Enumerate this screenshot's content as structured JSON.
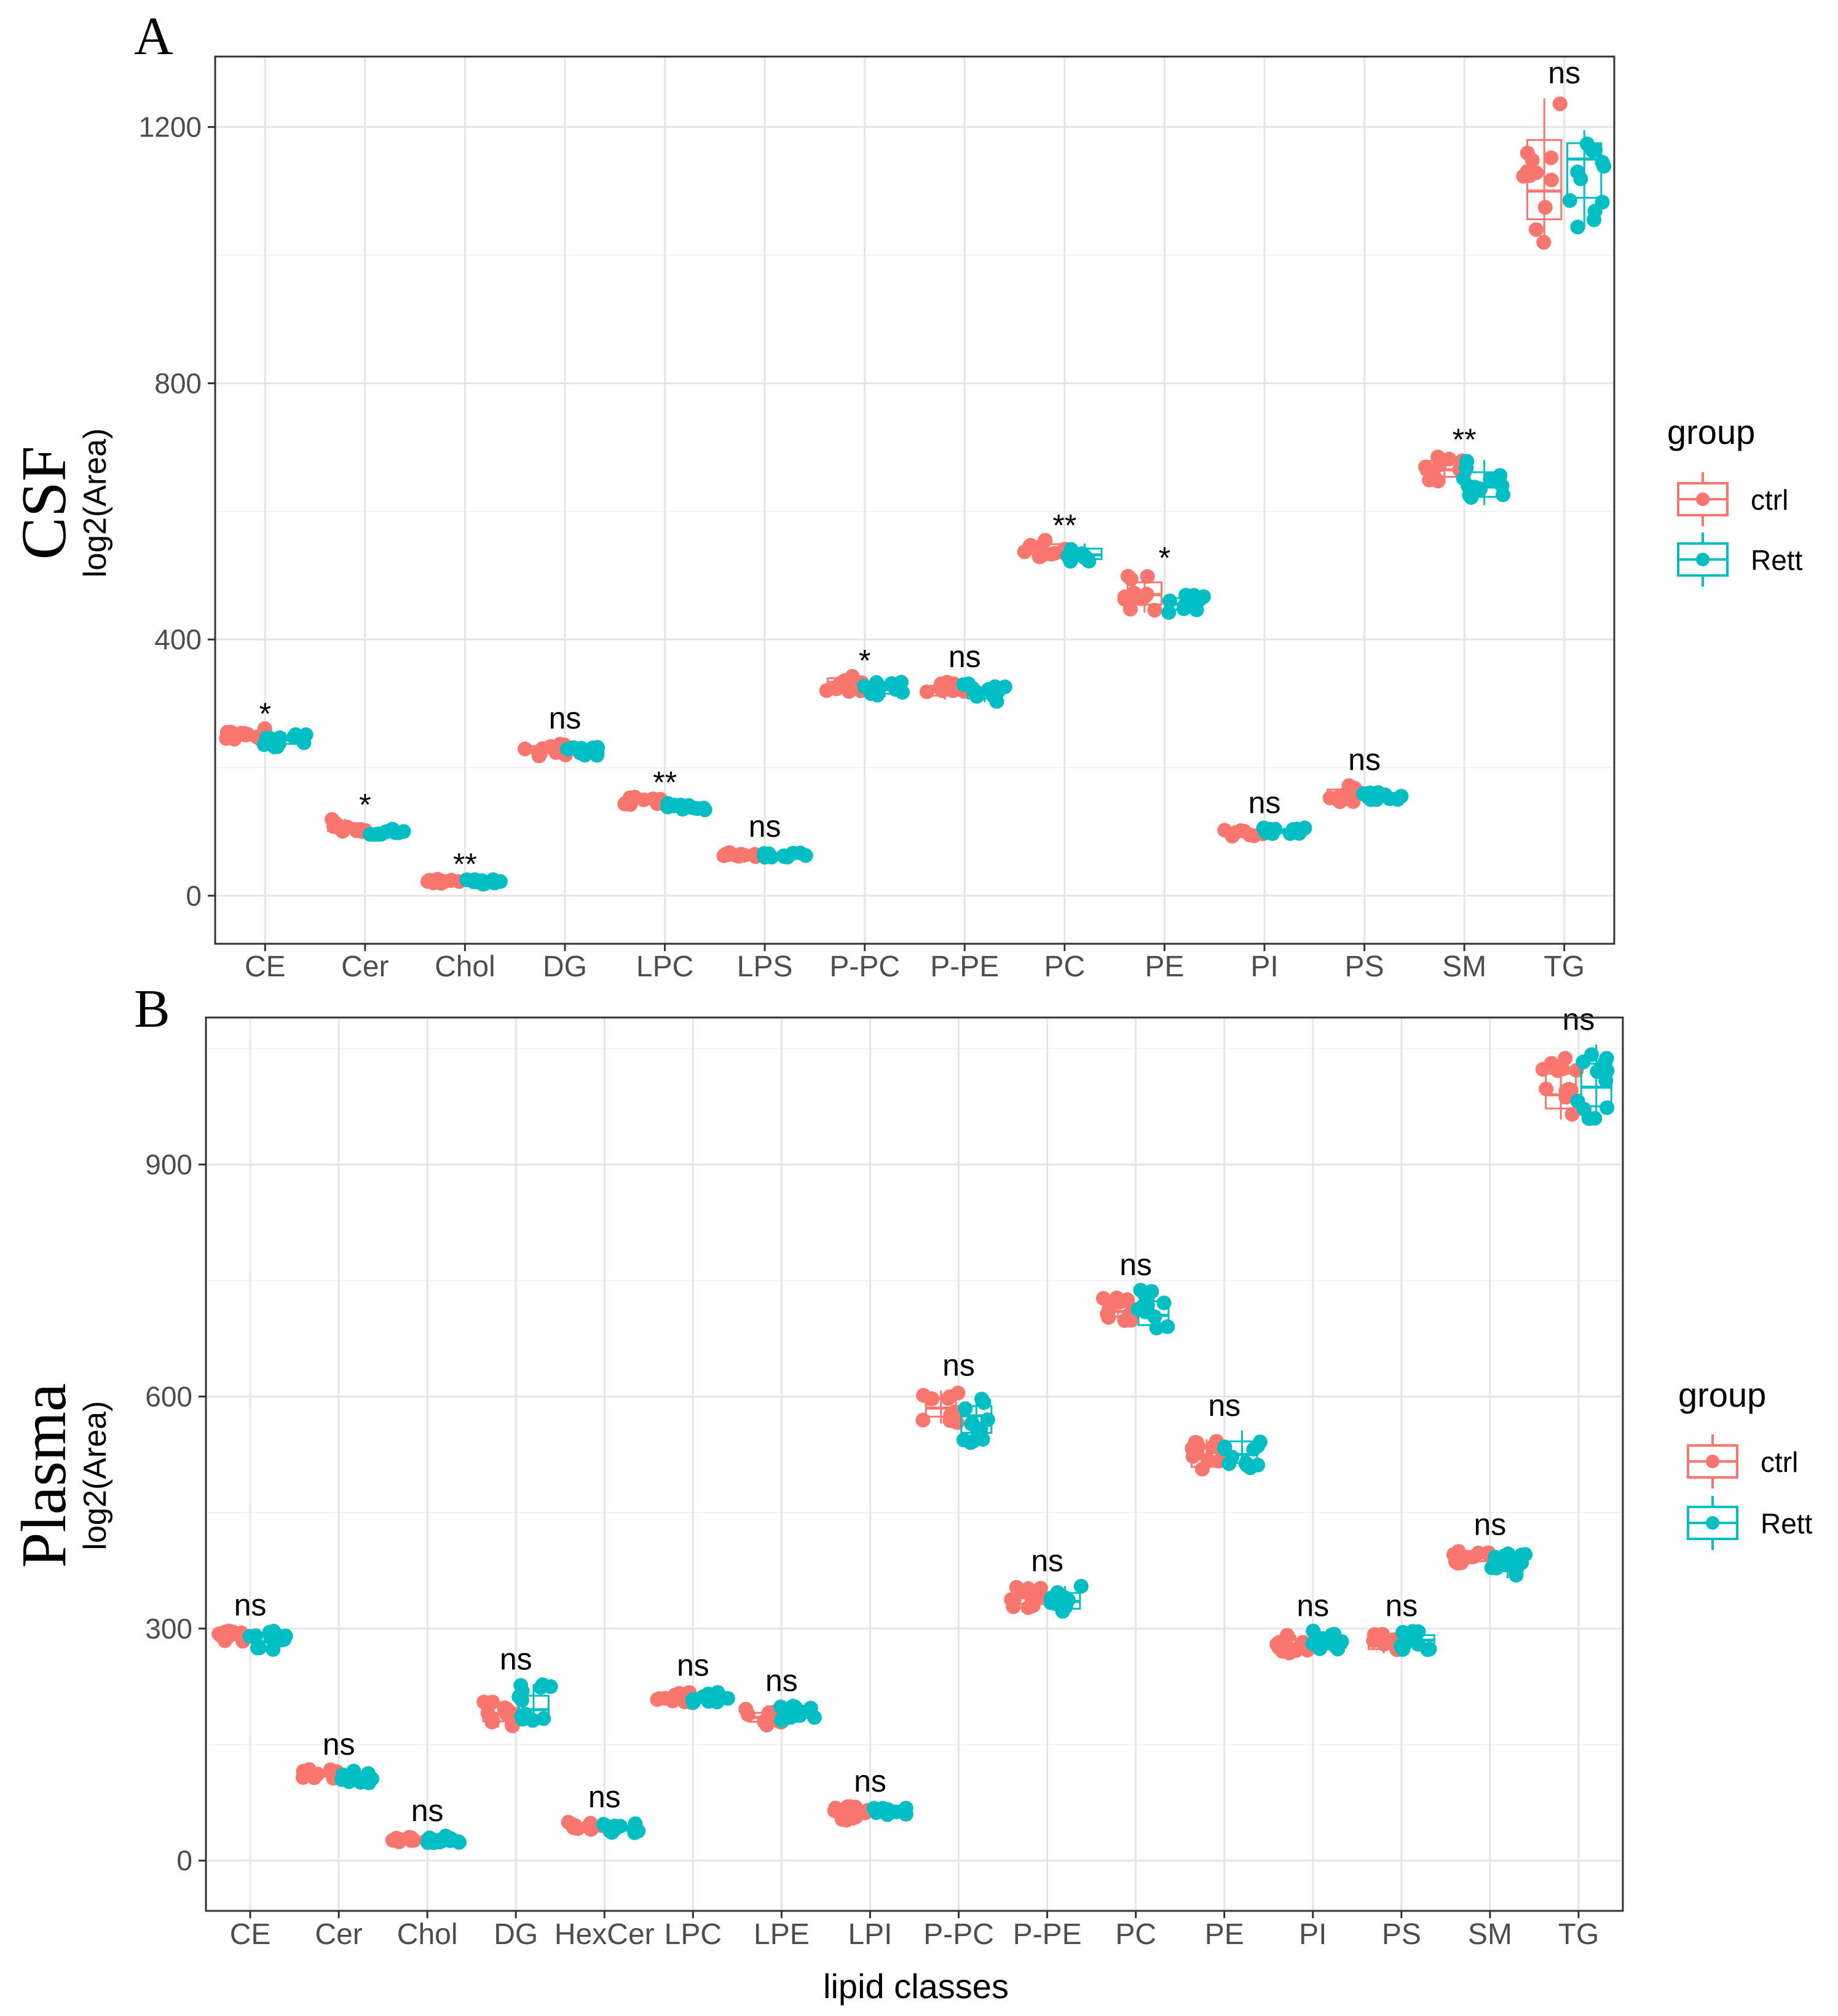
{
  "colors": {
    "ctrl": "#F8766D",
    "rett": "#00BFC4",
    "grid_major": "#E5E5E5",
    "grid_minor": "#F2F2F2",
    "panel_border": "#333333"
  },
  "legend": {
    "title": "group",
    "items": [
      "ctrl",
      "Rett"
    ]
  },
  "chart_data": [
    {
      "type": "box+jitter",
      "panel_label": "A",
      "row_title": "CSF",
      "ylabel": "log2(Area)",
      "xlabel": "",
      "ylim": [
        -75,
        1310
      ],
      "yticks": [
        0,
        400,
        800,
        1200
      ],
      "grid": true,
      "legend_position": "right",
      "categories": [
        "CE",
        "Cer",
        "Chol",
        "DG",
        "LPC",
        "LPS",
        "P-PC",
        "P-PE",
        "PC",
        "PE",
        "PI",
        "PS",
        "SM",
        "TG"
      ],
      "significance": [
        "*",
        "*",
        "**",
        "ns",
        "**",
        "ns",
        "*",
        "ns",
        "**",
        "*",
        "ns",
        "ns",
        "**",
        "ns"
      ],
      "series": [
        {
          "name": "ctrl",
          "medians": [
            250,
            105,
            22,
            228,
            148,
            65,
            333,
            320,
            540,
            470,
            97,
            157,
            665,
            1100
          ],
          "mins": [
            242,
            98,
            19,
            218,
            142,
            61,
            318,
            306,
            528,
            442,
            92,
            143,
            645,
            1020
          ],
          "maxs": [
            262,
            120,
            26,
            238,
            155,
            69,
            345,
            334,
            556,
            505,
            104,
            173,
            690,
            1245
          ]
        },
        {
          "name": "Rett",
          "medians": [
            243,
            100,
            22,
            225,
            140,
            64,
            322,
            315,
            532,
            455,
            100,
            155,
            638,
            1150
          ],
          "mins": [
            232,
            95,
            18,
            219,
            134,
            60,
            310,
            302,
            520,
            440,
            96,
            148,
            610,
            1040
          ],
          "maxs": [
            255,
            105,
            27,
            232,
            146,
            69,
            334,
            331,
            550,
            472,
            106,
            165,
            680,
            1195
          ]
        }
      ]
    },
    {
      "type": "box+jitter",
      "panel_label": "B",
      "row_title": "Plasma",
      "ylabel": "log2(Area)",
      "xlabel": "lipid classes",
      "ylim": [
        -65,
        1090
      ],
      "yticks": [
        0,
        300,
        600,
        900
      ],
      "grid": true,
      "legend_position": "right",
      "categories": [
        "CE",
        "Cer",
        "Chol",
        "DG",
        "HexCer",
        "LPC",
        "LPE",
        "LPI",
        "P-PC",
        "P-PE",
        "PC",
        "PE",
        "PI",
        "PS",
        "SM",
        "TG"
      ],
      "significance": [
        "ns",
        "ns",
        "ns",
        "ns",
        "ns",
        "ns",
        "ns",
        "ns",
        "ns",
        "ns",
        "ns",
        "ns",
        "ns",
        "ns",
        "ns",
        "ns"
      ],
      "series": [
        {
          "name": "ctrl",
          "medians": [
            290,
            112,
            28,
            190,
            45,
            210,
            185,
            60,
            585,
            340,
            710,
            520,
            280,
            280,
            392,
            990
          ],
          "mins": [
            282,
            106,
            24,
            172,
            40,
            203,
            175,
            52,
            565,
            325,
            698,
            500,
            268,
            268,
            383,
            958
          ],
          "maxs": [
            298,
            118,
            32,
            208,
            50,
            218,
            196,
            70,
            608,
            355,
            728,
            545,
            292,
            293,
            402,
            1040
          ]
        },
        {
          "name": "Rett",
          "medians": [
            283,
            108,
            27,
            195,
            42,
            212,
            190,
            65,
            575,
            335,
            705,
            525,
            282,
            285,
            385,
            1000
          ],
          "mins": [
            272,
            100,
            23,
            180,
            36,
            204,
            180,
            58,
            535,
            318,
            682,
            505,
            270,
            272,
            365,
            955
          ],
          "maxs": [
            297,
            118,
            32,
            228,
            48,
            220,
            200,
            70,
            598,
            355,
            738,
            556,
            297,
            297,
            398,
            1055
          ]
        }
      ]
    }
  ]
}
